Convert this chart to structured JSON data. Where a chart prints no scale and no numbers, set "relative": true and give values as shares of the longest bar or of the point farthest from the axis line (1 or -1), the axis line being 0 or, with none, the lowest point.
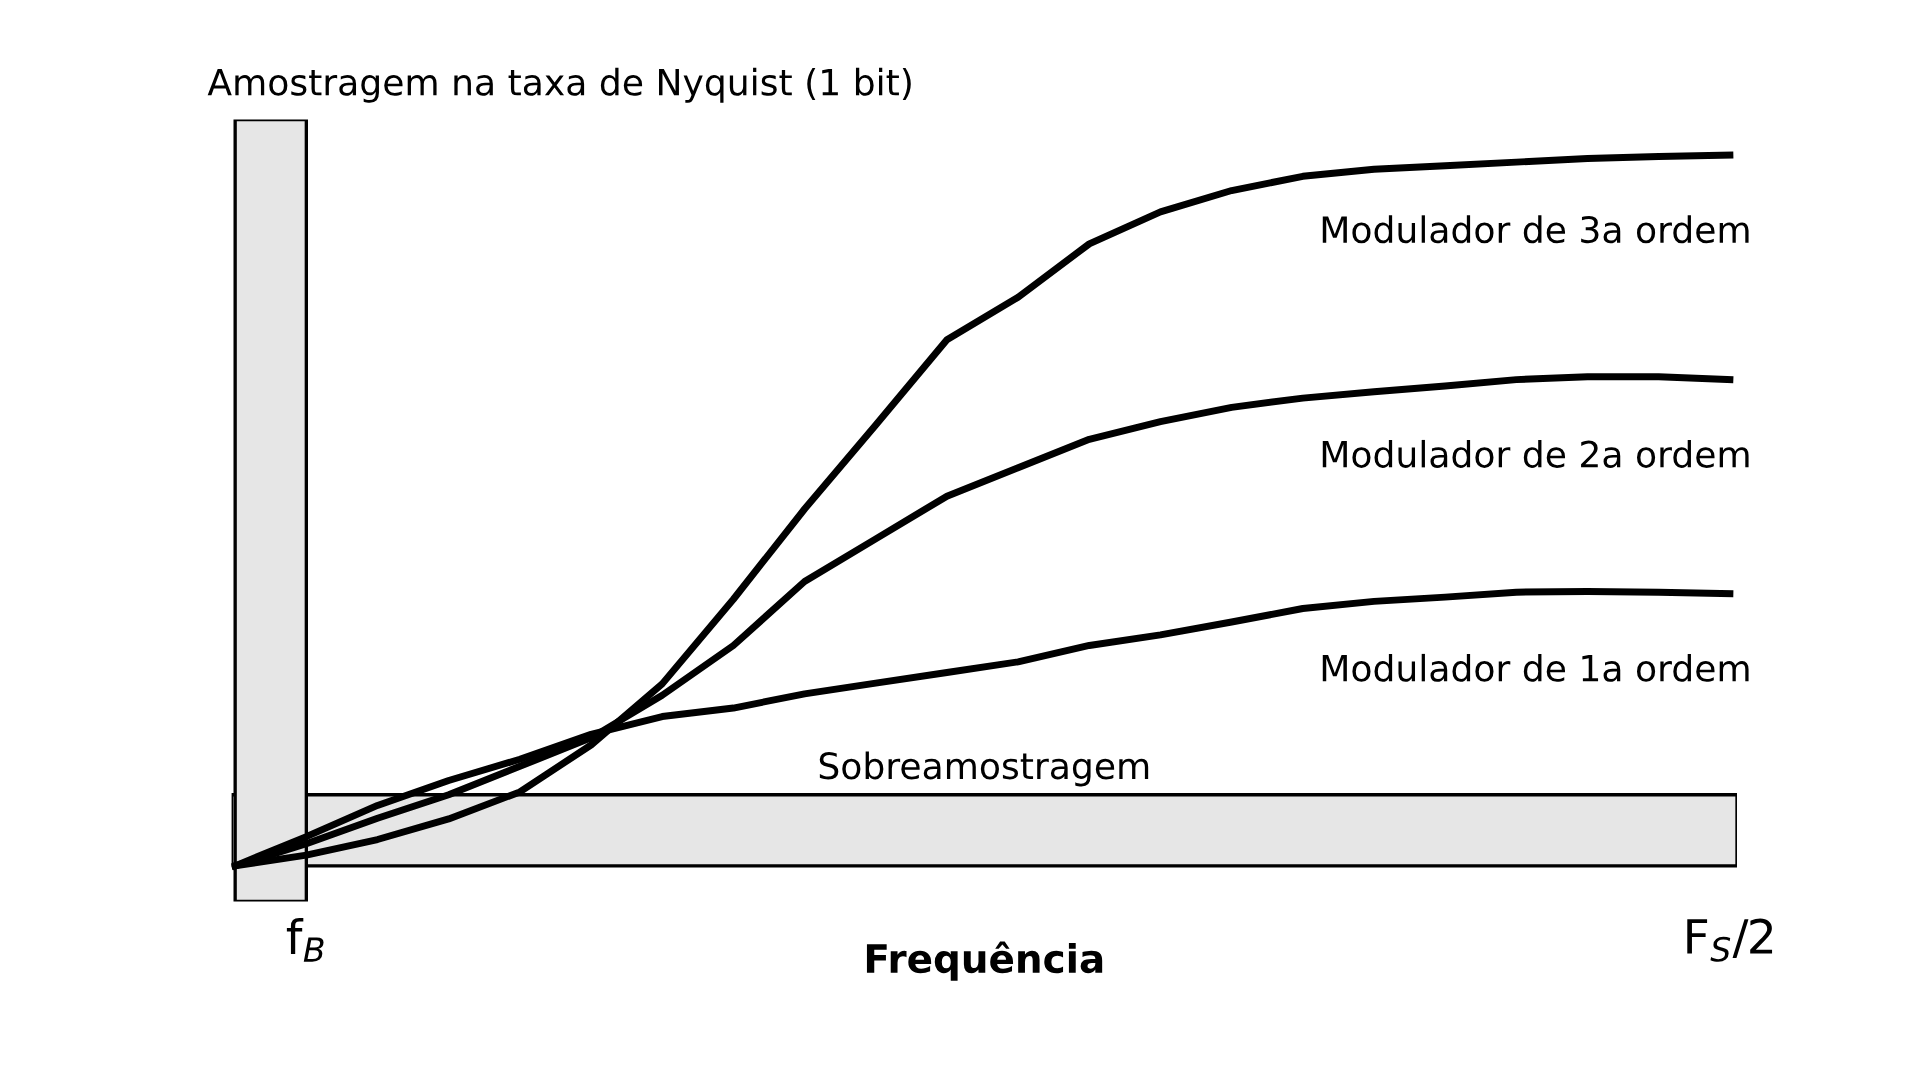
{
  "chart_data": {
    "type": "line",
    "relative": true,
    "xlabel": "Frequência",
    "categories": [
      null,
      "f$_{B}$",
      null,
      null,
      null,
      null,
      null,
      null,
      null,
      null,
      null,
      null,
      null,
      null,
      null,
      null,
      null,
      null,
      null,
      null,
      null,
      "F$_{S}$/2"
    ],
    "grid": false,
    "legend": false,
    "marker": "none",
    "line_style": "solid",
    "annotations": [
      "Amostragem na taxa de Nyquist (1 bit)"
    ],
    "bands": [
      {
        "axis": "y",
        "from": 0,
        "to": 0.1,
        "label": "Sobreamostragem",
        "color": "#e6e6e6"
      }
    ],
    "series": [
      {
        "name": "Modulador de 3a ordem",
        "color": "#000000",
        "values": [
          0,
          0.015,
          0.037,
          0.066,
          0.104,
          0.17,
          0.256,
          0.375,
          0.502,
          0.62,
          0.74,
          0.8,
          0.875,
          0.92,
          0.95,
          0.97,
          0.98,
          0.985,
          0.99,
          0.995,
          0.998,
          1
        ]
      },
      {
        "name": "Modulador de 2a ordem",
        "color": "#000000",
        "values": [
          0,
          0.031,
          0.067,
          0.1,
          0.14,
          0.18,
          0.24,
          0.31,
          0.4,
          0.46,
          0.52,
          0.56,
          0.6,
          0.625,
          0.645,
          0.658,
          0.667,
          0.675,
          0.684,
          0.688,
          0.688,
          0.684
        ]
      },
      {
        "name": "Modulador de 1a ordem",
        "color": "#000000",
        "values": [
          0,
          0.041,
          0.085,
          0.12,
          0.15,
          0.185,
          0.21,
          0.222,
          0.242,
          0.257,
          0.272,
          0.287,
          0.31,
          0.325,
          0.343,
          0.362,
          0.372,
          0.378,
          0.385,
          0.386,
          0.385,
          0.383
        ]
      }
    ]
  }
}
